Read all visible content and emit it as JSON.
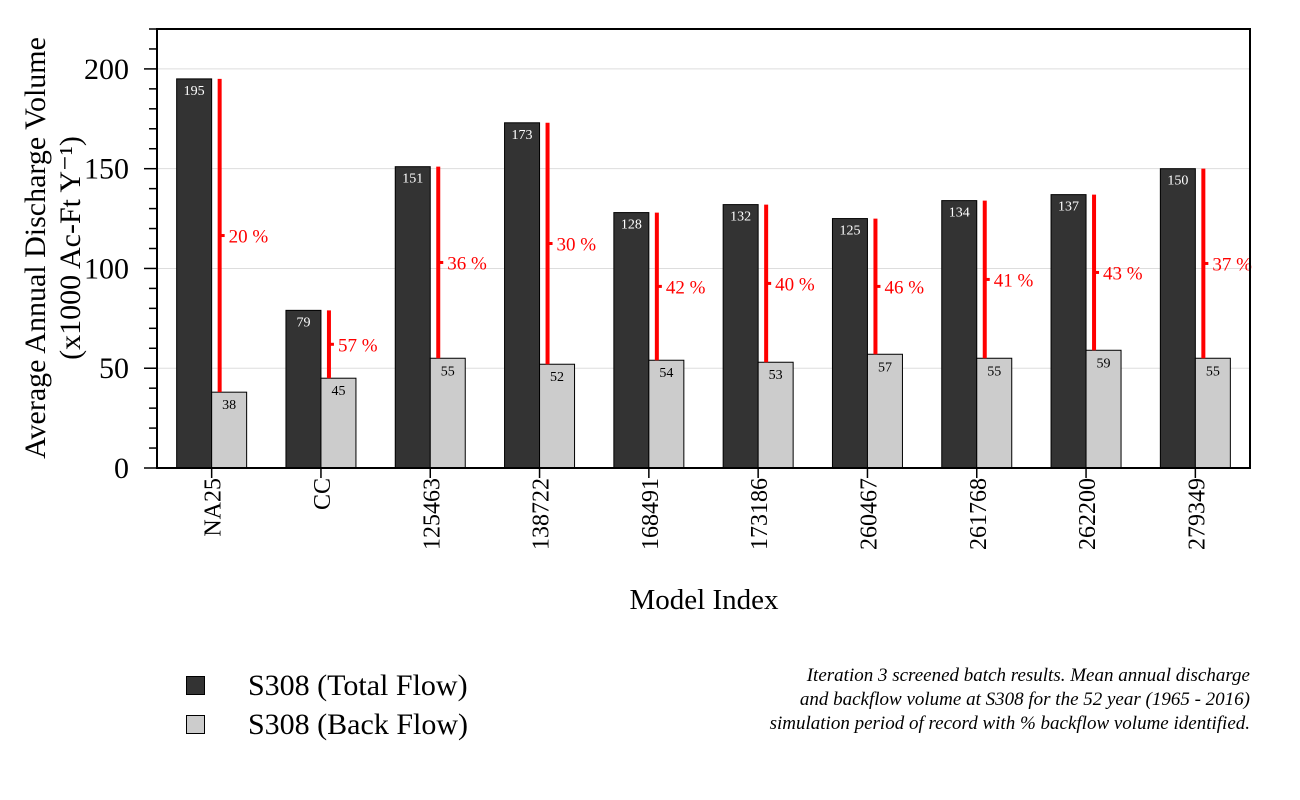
{
  "chart_data": {
    "type": "bar",
    "xlabel": "Model Index",
    "ylabel_line1": "Average Annual Discharge Volume",
    "ylabel_line2": "(x1000 Ac-Ft Y⁻¹)",
    "ylim": [
      0,
      220
    ],
    "yticks": [
      0,
      50,
      100,
      150,
      200
    ],
    "grid": true,
    "categories": [
      "NA25",
      "CC",
      "125463",
      "138722",
      "168491",
      "173186",
      "260467",
      "261768",
      "262200",
      "279349"
    ],
    "series": [
      {
        "name": "S308 (Total Flow)",
        "color": "#333333",
        "values": [
          195,
          79,
          151,
          173,
          128,
          132,
          125,
          134,
          137,
          150
        ]
      },
      {
        "name": "S308 (Back Flow)",
        "color": "#cccccc",
        "values": [
          38,
          45,
          55,
          52,
          54,
          53,
          57,
          55,
          59,
          55
        ]
      }
    ],
    "percent_labels": [
      "20 %",
      "57 %",
      "36 %",
      "30 %",
      "42 %",
      "40 %",
      "46 %",
      "41 %",
      "43 %",
      "37 %"
    ],
    "percent_color": "#ff0000"
  },
  "note": {
    "line1": "Iteration 3 screened batch results. Mean annual discharge",
    "line2": "and backflow volume at S308 for the 52 year (1965 - 2016)",
    "line3": "simulation period of record with % backflow volume identified."
  }
}
